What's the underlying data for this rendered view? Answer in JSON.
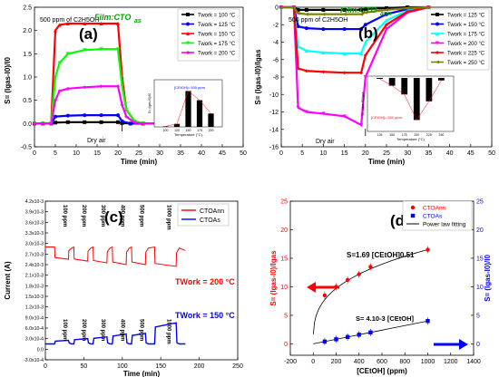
{
  "chart_data": [
    {
      "panel": "(a)",
      "type": "line",
      "film_label": "Film:CTO",
      "film_sub": "as",
      "ylabel_text": "S= (I",
      "ylabel_full": "S= (Igas-I0)/I0",
      "xlabel": "Time (min)",
      "annotation_top": "500 ppm of C2H5OH",
      "annotation_dry": "Dry air",
      "xlim": [
        0,
        50
      ],
      "ylim": [
        -0.5,
        2.5
      ],
      "xticks": [
        "0",
        "5",
        "10",
        "15",
        "20",
        "25",
        "30",
        "35",
        "40",
        "45",
        "50"
      ],
      "yticks": [
        "-0.5",
        "0.0",
        "0.5",
        "1.0",
        "1.5",
        "2.0",
        "2.5"
      ],
      "series": [
        {
          "name": "Twork = 100 °C",
          "color": "#000000",
          "marker": "square",
          "x": [
            0,
            2,
            4,
            5,
            8,
            12,
            16,
            20,
            21,
            23,
            26,
            30,
            35
          ],
          "y": [
            0,
            0,
            0,
            0.02,
            0.03,
            0.03,
            0.03,
            0.03,
            0.01,
            0,
            0,
            0,
            0
          ]
        },
        {
          "name": "Twork = 125 °C",
          "color": "#0000ff",
          "marker": "circle",
          "x": [
            0,
            2,
            4,
            5,
            8,
            12,
            16,
            20,
            21,
            23,
            26,
            30,
            35
          ],
          "y": [
            0,
            0,
            0,
            0.15,
            0.17,
            0.18,
            0.18,
            0.18,
            0.05,
            0,
            0,
            0,
            0
          ]
        },
        {
          "name": "Twork = 150 °C",
          "color": "#ff0000",
          "marker": "triangle",
          "x": [
            0,
            2,
            4,
            5,
            6,
            8,
            12,
            16,
            20,
            21,
            22,
            24,
            26,
            30,
            35
          ],
          "y": [
            0,
            0,
            0,
            2.0,
            2.12,
            2.15,
            2.15,
            2.15,
            2.15,
            1.0,
            0.3,
            0.05,
            0,
            0,
            0
          ]
        },
        {
          "name": "Twork = 175 °C",
          "color": "#00ff00",
          "marker": "triangle-down",
          "x": [
            0,
            2,
            4,
            5,
            6,
            8,
            12,
            16,
            20,
            21,
            22,
            24,
            26,
            30,
            35
          ],
          "y": [
            0,
            0,
            0,
            1.0,
            1.3,
            1.5,
            1.58,
            1.6,
            1.6,
            0.8,
            0.3,
            0.05,
            0,
            0,
            0
          ]
        },
        {
          "name": "Twork = 200 °C",
          "color": "#ff00ff",
          "marker": "diamond",
          "x": [
            0,
            2,
            4,
            5,
            6,
            8,
            12,
            16,
            20,
            21,
            22,
            24,
            26,
            30,
            35
          ],
          "y": [
            0,
            0,
            0,
            0.5,
            0.7,
            0.75,
            0.78,
            0.8,
            0.8,
            0.4,
            0.15,
            0.02,
            0,
            0,
            0
          ]
        }
      ],
      "inset": {
        "type": "bar",
        "annotation": "[CEtOH]= 500 ppm",
        "xlabel": "Temperature (°C)",
        "ylabel": "S= (Igas-I0)/I0",
        "categories": [
          "100",
          "125",
          "150",
          "175",
          "200"
        ],
        "values": [
          0.03,
          0.18,
          2.15,
          1.6,
          0.8
        ]
      }
    },
    {
      "panel": "(b)",
      "type": "line",
      "film_label": "Film:CTO",
      "film_sub": "ann",
      "ylabel_full": "S= (Igas-I0)/Igas",
      "xlabel": "Time (min)",
      "annotation_top": "500 ppm of C2H5OH",
      "annotation_dry": "Dry air",
      "xlim": [
        0,
        50
      ],
      "ylim": [
        -16,
        0
      ],
      "xticks": [
        "0",
        "5",
        "10",
        "15",
        "20",
        "25",
        "30",
        "35",
        "40",
        "45",
        "50"
      ],
      "yticks": [
        "0",
        "-2",
        "-4",
        "-6",
        "-8",
        "-10",
        "-12",
        "-14",
        "-16"
      ],
      "series": [
        {
          "name": "Twork = 125 °C",
          "color": "#000000",
          "marker": "square",
          "x": [
            0,
            3,
            4,
            6,
            10,
            15,
            19,
            20,
            25,
            30,
            35
          ],
          "y": [
            0,
            0,
            -0.3,
            -0.3,
            -0.3,
            -0.3,
            -0.3,
            -0.2,
            -0.1,
            0,
            0
          ]
        },
        {
          "name": "Twork = 150 °C",
          "color": "#0000ff",
          "marker": "circle",
          "x": [
            0,
            3,
            4,
            6,
            10,
            15,
            19,
            20,
            25,
            30,
            35
          ],
          "y": [
            0,
            0,
            -2.2,
            -2.4,
            -2.5,
            -2.5,
            -2.5,
            -2.0,
            -0.8,
            -0.2,
            0
          ]
        },
        {
          "name": "Twork = 175 °C",
          "color": "#00ffff",
          "marker": "triangle",
          "x": [
            0,
            3,
            4,
            6,
            10,
            15,
            19,
            20,
            25,
            30,
            35
          ],
          "y": [
            0,
            0,
            -4.5,
            -5.0,
            -5.2,
            -5.3,
            -5.3,
            -4.0,
            -1.5,
            -0.4,
            0
          ]
        },
        {
          "name": "Twork = 200 °C",
          "color": "#ff00ff",
          "marker": "triangle-down",
          "x": [
            0,
            3,
            4,
            6,
            10,
            15,
            19,
            20,
            25,
            30,
            35
          ],
          "y": [
            0,
            0,
            -11.5,
            -12.0,
            -12.2,
            -12.5,
            -13.5,
            -8.0,
            -2.5,
            -0.6,
            0
          ]
        },
        {
          "name": "Twork = 225 °C",
          "color": "#ff0000",
          "marker": "diamond",
          "x": [
            0,
            3,
            4,
            6,
            10,
            15,
            19,
            20,
            25,
            30,
            35
          ],
          "y": [
            0,
            0,
            -7.0,
            -7.3,
            -7.4,
            -7.5,
            -7.5,
            -5.5,
            -2.0,
            -0.5,
            0
          ]
        },
        {
          "name": "Twork = 250 °C",
          "color": "#808000",
          "marker": "triangle-left",
          "x": [
            0,
            3,
            4,
            6,
            10,
            15,
            19,
            20,
            25,
            30,
            35
          ],
          "y": [
            0,
            0,
            -0.7,
            -0.8,
            -0.8,
            -0.8,
            -0.8,
            -0.6,
            -0.3,
            -0.1,
            0
          ]
        }
      ],
      "inset": {
        "type": "bar",
        "annotation": "[CEtOH]= 500 ppm",
        "xlabel": "Temperature (°C)",
        "ylabel": "S= (Igas-I0)/Igas",
        "categories": [
          "125",
          "150",
          "175",
          "200",
          "225",
          "250"
        ],
        "values": [
          -0.3,
          -2.5,
          -5.3,
          -13.5,
          -7.5,
          -0.8
        ]
      }
    },
    {
      "panel": "(c)",
      "type": "line",
      "ylabel": "Current  (A)",
      "xlabel": "Time (min)",
      "xlim": [
        0,
        250
      ],
      "ylim": [
        -0.0003,
        0.0042
      ],
      "xticks": [
        "0",
        "50",
        "100",
        "150",
        "200",
        "250"
      ],
      "yticks": [
        "-3.0x10-4",
        "0.0",
        "3.0x10-4",
        "6.0x10-4",
        "9.0x10-4",
        "1.2x10-3",
        "1.5x10-3",
        "1.8x10-3",
        "2.1x10-3",
        "2.4x10-3",
        "2.7x10-3",
        "3.0x10-3",
        "3.3x10-3",
        "3.6x10-3",
        "3.9x10-3",
        "4.2x10-3"
      ],
      "legend": [
        "CTOAnn",
        "CTOAs"
      ],
      "temp_ann": "TWork = 200 °C",
      "temp_as": "TWork = 150 °C",
      "ppm_labels": [
        "100 ppm",
        "200 ppm",
        "300 ppm",
        "400 ppm",
        "500 ppm",
        "1000 ppm"
      ],
      "series": [
        {
          "name": "CTOAnn",
          "color": "#ff0000",
          "baseline": 0.0029,
          "pulse_depth": [
            0.00035,
            0.0004,
            0.00045,
            0.0005,
            0.0005,
            0.00055
          ],
          "pulse_start": [
            12,
            37,
            62,
            87,
            112,
            142
          ],
          "pulse_end": [
            30,
            55,
            80,
            105,
            130,
            170
          ]
        },
        {
          "name": "CTOAs",
          "color": "#0000ff",
          "baseline": 0.00015,
          "pulse_height": [
            0.0001,
            0.00015,
            0.0002,
            0.00028,
            0.0003,
            0.0006
          ],
          "pulse_start": [
            12,
            37,
            62,
            87,
            112,
            142
          ],
          "pulse_end": [
            30,
            55,
            80,
            105,
            130,
            170
          ]
        }
      ]
    },
    {
      "panel": "(d)",
      "type": "scatter",
      "ylabel_left": "S= (Igas-I0)/Igas",
      "ylabel_right": "S= (Igas-I0)/I0",
      "xlabel": "[CEtOH] (ppm)",
      "xlim": [
        -200,
        1400
      ],
      "ylim": [
        -2,
        25
      ],
      "xticks": [
        "-200",
        "0",
        "200",
        "400",
        "600",
        "800",
        "1000",
        "1200",
        "1400"
      ],
      "yticks": [
        "0",
        "5",
        "10",
        "15",
        "20",
        "25"
      ],
      "legend": [
        "CTOAnn",
        "CTOAs",
        "Power law fitting"
      ],
      "fit_ann": "S=1.69 [CEtOH]0.51",
      "fit_as": "S= 4.10-3 [CEtOH]",
      "series": [
        {
          "name": "CTOAnn",
          "color": "#ff0000",
          "x": [
            100,
            200,
            300,
            400,
            500,
            1000
          ],
          "y": [
            8.5,
            10.0,
            11.2,
            12.2,
            13.5,
            16.5
          ]
        },
        {
          "name": "CTOAs",
          "color": "#0000ff",
          "x": [
            100,
            200,
            300,
            400,
            500,
            1000
          ],
          "y": [
            0.4,
            0.8,
            1.2,
            1.6,
            2.0,
            4.0
          ]
        }
      ]
    }
  ]
}
